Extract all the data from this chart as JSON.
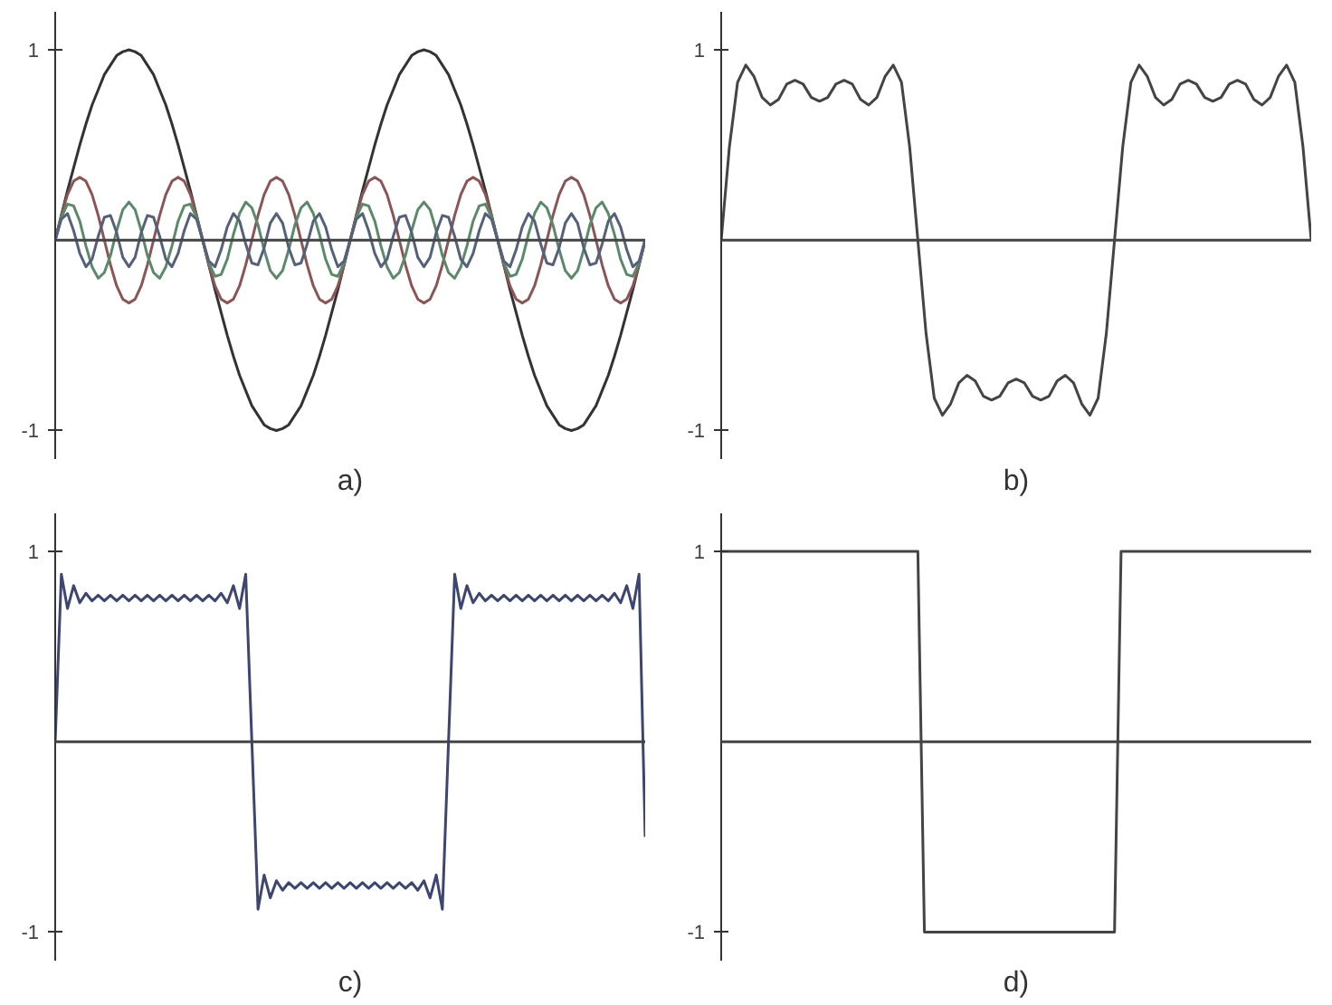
{
  "chart_data": [
    {
      "type": "line",
      "xlabel": "a)",
      "tick_labels": "y",
      "ylim": [
        -1.15,
        1.2
      ],
      "yticks": [
        1,
        -1
      ],
      "ref_lines": [
        {
          "axis": "y",
          "value": 0
        }
      ],
      "categories": [
        null,
        null,
        null,
        null,
        null,
        null,
        null,
        null,
        null,
        null,
        null,
        null,
        null,
        null,
        null,
        null,
        null,
        null,
        null,
        null,
        null,
        null,
        null,
        null,
        null,
        null,
        null,
        null,
        null,
        null,
        null,
        null,
        null,
        null,
        null,
        null,
        null,
        null,
        null,
        null,
        null,
        null,
        null,
        null,
        null,
        null,
        null,
        null,
        null,
        null,
        null,
        null,
        null,
        null,
        null,
        null,
        null,
        null,
        null,
        null,
        null,
        null,
        null,
        null,
        null,
        null,
        null,
        null,
        null,
        null,
        null,
        null,
        null,
        null,
        null,
        null,
        null,
        null,
        null,
        null,
        null,
        null,
        null,
        null,
        null,
        null,
        null,
        null,
        null,
        null,
        null,
        null,
        null,
        null,
        null,
        null,
        null
      ],
      "series": [
        {
          "color": "#333333",
          "values": [
            0,
            0.13,
            0.26,
            0.38,
            0.5,
            0.61,
            0.71,
            0.79,
            0.87,
            0.92,
            0.97,
            0.99,
            1,
            0.99,
            0.97,
            0.92,
            0.87,
            0.79,
            0.71,
            0.61,
            0.5,
            0.38,
            0.26,
            0.13,
            0,
            -0.13,
            -0.26,
            -0.38,
            -0.5,
            -0.61,
            -0.71,
            -0.79,
            -0.87,
            -0.92,
            -0.97,
            -0.99,
            -1,
            -0.99,
            -0.97,
            -0.92,
            -0.87,
            -0.79,
            -0.71,
            -0.61,
            -0.5,
            -0.38,
            -0.26,
            -0.13,
            0,
            0.13,
            0.26,
            0.38,
            0.5,
            0.61,
            0.71,
            0.79,
            0.87,
            0.92,
            0.97,
            0.99,
            1,
            0.99,
            0.97,
            0.92,
            0.87,
            0.79,
            0.71,
            0.61,
            0.5,
            0.38,
            0.26,
            0.13,
            0,
            -0.13,
            -0.26,
            -0.38,
            -0.5,
            -0.61,
            -0.71,
            -0.79,
            -0.87,
            -0.92,
            -0.97,
            -0.99,
            -1,
            -0.99,
            -0.97,
            -0.92,
            -0.87,
            -0.79,
            -0.71,
            -0.61,
            -0.5,
            -0.38,
            -0.26,
            -0.13,
            0
          ]
        },
        {
          "color": "#8c5555",
          "values": [
            0,
            0.13,
            0.24,
            0.31,
            0.33,
            0.31,
            0.24,
            0.13,
            0,
            -0.13,
            -0.24,
            -0.31,
            -0.33,
            -0.31,
            -0.24,
            -0.13,
            0,
            0.13,
            0.24,
            0.31,
            0.33,
            0.31,
            0.24,
            0.13,
            0,
            -0.13,
            -0.24,
            -0.31,
            -0.33,
            -0.31,
            -0.24,
            -0.13,
            0,
            0.13,
            0.24,
            0.31,
            0.33,
            0.31,
            0.24,
            0.13,
            0,
            -0.13,
            -0.24,
            -0.31,
            -0.33,
            -0.31,
            -0.24,
            -0.13,
            0,
            0.13,
            0.24,
            0.31,
            0.33,
            0.31,
            0.24,
            0.13,
            0,
            -0.13,
            -0.24,
            -0.31,
            -0.33,
            -0.31,
            -0.24,
            -0.13,
            0,
            0.13,
            0.24,
            0.31,
            0.33,
            0.31,
            0.24,
            0.13,
            0,
            -0.13,
            -0.24,
            -0.31,
            -0.33,
            -0.31,
            -0.24,
            -0.13,
            0,
            0.13,
            0.24,
            0.31,
            0.33,
            0.31,
            0.24,
            0.13,
            0,
            -0.13,
            -0.24,
            -0.31,
            -0.33,
            -0.31,
            -0.24,
            -0.13,
            0
          ]
        },
        {
          "color": "#5a8a6a",
          "values": [
            0,
            0.12,
            0.19,
            0.18,
            0.1,
            -0.03,
            -0.14,
            -0.2,
            -0.17,
            -0.08,
            0.05,
            0.16,
            0.2,
            0.16,
            0.05,
            -0.08,
            -0.17,
            -0.2,
            -0.14,
            -0.03,
            0.1,
            0.18,
            0.19,
            0.12,
            0,
            -0.12,
            -0.19,
            -0.18,
            -0.1,
            0.03,
            0.14,
            0.2,
            0.17,
            0.08,
            -0.05,
            -0.16,
            -0.2,
            -0.16,
            -0.05,
            0.08,
            0.17,
            0.2,
            0.14,
            0.03,
            -0.1,
            -0.18,
            -0.19,
            -0.12,
            0,
            0.12,
            0.19,
            0.18,
            0.1,
            -0.03,
            -0.14,
            -0.2,
            -0.17,
            -0.08,
            0.05,
            0.16,
            0.2,
            0.16,
            0.05,
            -0.08,
            -0.17,
            -0.2,
            -0.14,
            -0.03,
            0.1,
            0.18,
            0.19,
            0.12,
            0,
            -0.12,
            -0.19,
            -0.18,
            -0.1,
            0.03,
            0.14,
            0.2,
            0.17,
            0.08,
            -0.05,
            -0.16,
            -0.2,
            -0.16,
            -0.05,
            0.08,
            0.17,
            0.2,
            0.14,
            0.03,
            -0.1,
            -0.18,
            -0.19,
            -0.12,
            0
          ]
        },
        {
          "color": "#55607a",
          "values": [
            0,
            0.11,
            0.14,
            0.05,
            -0.07,
            -0.14,
            -0.1,
            0.02,
            0.12,
            0.13,
            0.04,
            -0.09,
            -0.14,
            -0.09,
            0.04,
            0.13,
            0.12,
            0.02,
            -0.1,
            -0.14,
            -0.07,
            0.05,
            0.14,
            0.11,
            0,
            -0.11,
            -0.14,
            -0.05,
            0.07,
            0.14,
            0.1,
            -0.02,
            -0.12,
            -0.13,
            -0.04,
            0.09,
            0.14,
            0.09,
            -0.04,
            -0.13,
            -0.12,
            -0.02,
            0.1,
            0.14,
            0.07,
            -0.05,
            -0.14,
            -0.11,
            0,
            0.11,
            0.14,
            0.05,
            -0.07,
            -0.14,
            -0.1,
            0.02,
            0.12,
            0.13,
            0.04,
            -0.09,
            -0.14,
            -0.09,
            0.04,
            0.13,
            0.12,
            0.02,
            -0.1,
            -0.14,
            -0.07,
            0.05,
            0.14,
            0.11,
            0,
            -0.11,
            -0.14,
            -0.05,
            0.07,
            0.14,
            0.1,
            -0.02,
            -0.12,
            -0.13,
            -0.04,
            0.09,
            0.14,
            0.09,
            -0.04,
            -0.13,
            -0.12,
            -0.02,
            0.1,
            0.14,
            0.07,
            -0.05,
            -0.14,
            -0.11,
            0
          ]
        }
      ]
    },
    {
      "type": "line",
      "xlabel": "b)",
      "tick_labels": "y",
      "ylim": [
        -1.15,
        1.2
      ],
      "yticks": [
        1,
        -1
      ],
      "ref_lines": [
        {
          "axis": "y",
          "value": 0
        }
      ],
      "categories": [
        null,
        null,
        null,
        null,
        null,
        null,
        null,
        null,
        null,
        null,
        null,
        null,
        null,
        null,
        null,
        null,
        null,
        null,
        null,
        null,
        null,
        null,
        null,
        null,
        null,
        null,
        null,
        null,
        null,
        null,
        null,
        null,
        null,
        null,
        null,
        null,
        null,
        null,
        null,
        null,
        null,
        null,
        null,
        null,
        null,
        null,
        null,
        null,
        null,
        null,
        null,
        null,
        null,
        null,
        null,
        null,
        null,
        null,
        null,
        null,
        null,
        null,
        null,
        null,
        null,
        null,
        null,
        null,
        null,
        null,
        null,
        null,
        null
      ],
      "series": [
        {
          "color": "#444444",
          "values": [
            0,
            0.49,
            0.83,
            0.92,
            0.86,
            0.75,
            0.71,
            0.74,
            0.82,
            0.84,
            0.82,
            0.75,
            0.73,
            0.75,
            0.82,
            0.84,
            0.82,
            0.74,
            0.71,
            0.75,
            0.86,
            0.92,
            0.83,
            0.49,
            0,
            -0.49,
            -0.83,
            -0.92,
            -0.86,
            -0.75,
            -0.71,
            -0.74,
            -0.82,
            -0.84,
            -0.82,
            -0.75,
            -0.73,
            -0.75,
            -0.82,
            -0.84,
            -0.82,
            -0.74,
            -0.71,
            -0.75,
            -0.86,
            -0.92,
            -0.83,
            -0.49,
            0,
            0.49,
            0.83,
            0.92,
            0.86,
            0.75,
            0.71,
            0.74,
            0.82,
            0.84,
            0.82,
            0.75,
            0.73,
            0.75,
            0.82,
            0.84,
            0.82,
            0.74,
            0.71,
            0.75,
            0.86,
            0.92,
            0.83,
            0.49,
            0
          ]
        }
      ]
    },
    {
      "type": "line",
      "xlabel": "c)",
      "tick_labels": "y",
      "ylim": [
        -1.15,
        1.2
      ],
      "yticks": [
        1,
        -1
      ],
      "ref_lines": [
        {
          "axis": "y",
          "value": 0
        }
      ],
      "categories": [
        null,
        null,
        null,
        null,
        null,
        null,
        null,
        null,
        null,
        null,
        null,
        null,
        null,
        null,
        null,
        null,
        null,
        null,
        null,
        null,
        null,
        null,
        null,
        null,
        null,
        null,
        null,
        null,
        null,
        null,
        null,
        null,
        null,
        null,
        null,
        null,
        null,
        null,
        null,
        null,
        null,
        null,
        null,
        null,
        null,
        null,
        null,
        null,
        null,
        null,
        null,
        null,
        null,
        null,
        null,
        null,
        null,
        null,
        null,
        null,
        null,
        null,
        null,
        null,
        null,
        null,
        null,
        null,
        null,
        null,
        null,
        null,
        null,
        null,
        null,
        null,
        null,
        null,
        null,
        null,
        null,
        null,
        null,
        null,
        null,
        null,
        null,
        null,
        null,
        null,
        null,
        null,
        null,
        null,
        null,
        null,
        null
      ],
      "series": [
        {
          "color": "#3c4670",
          "values": [
            0,
            0.88,
            0.7,
            0.82,
            0.73,
            0.78,
            0.74,
            0.77,
            0.74,
            0.77,
            0.74,
            0.77,
            0.74,
            0.77,
            0.74,
            0.77,
            0.74,
            0.77,
            0.74,
            0.77,
            0.74,
            0.77,
            0.74,
            0.77,
            0.74,
            0.77,
            0.74,
            0.78,
            0.73,
            0.82,
            0.7,
            0.88,
            0,
            -0.88,
            -0.7,
            -0.82,
            -0.73,
            -0.78,
            -0.74,
            -0.77,
            -0.74,
            -0.77,
            -0.74,
            -0.77,
            -0.74,
            -0.77,
            -0.74,
            -0.77,
            -0.74,
            -0.77,
            -0.74,
            -0.77,
            -0.74,
            -0.77,
            -0.74,
            -0.77,
            -0.74,
            -0.77,
            -0.74,
            -0.78,
            -0.73,
            -0.82,
            -0.7,
            -0.88,
            0,
            0.88,
            0.7,
            0.82,
            0.73,
            0.78,
            0.74,
            0.77,
            0.74,
            0.77,
            0.74,
            0.77,
            0.74,
            0.77,
            0.74,
            0.77,
            0.74,
            0.77,
            0.74,
            0.77,
            0.74,
            0.77,
            0.74,
            0.77,
            0.74,
            0.77,
            0.74,
            0.78,
            0.73,
            0.82,
            0.7,
            0.88,
            -0.5
          ]
        }
      ]
    },
    {
      "type": "line",
      "xlabel": "d)",
      "tick_labels": "y",
      "ylim": [
        -1.15,
        1.2
      ],
      "yticks": [
        1,
        -1
      ],
      "ref_lines": [
        {
          "axis": "y",
          "value": 0
        }
      ],
      "categories": [
        null,
        null,
        null,
        null,
        null,
        null,
        null,
        null,
        null,
        null,
        null,
        null,
        null,
        null,
        null,
        null,
        null,
        null,
        null,
        null,
        null,
        null,
        null,
        null,
        null,
        null,
        null,
        null,
        null,
        null,
        null,
        null,
        null,
        null,
        null,
        null,
        null,
        null,
        null,
        null,
        null,
        null,
        null,
        null,
        null,
        null,
        null,
        null,
        null,
        null,
        null,
        null,
        null,
        null,
        null,
        null,
        null,
        null,
        null,
        null,
        null,
        null,
        null,
        null,
        null,
        null,
        null,
        null,
        null,
        null,
        null,
        null,
        null,
        null,
        null,
        null,
        null,
        null,
        null,
        null,
        null,
        null,
        null,
        null,
        null,
        null,
        null,
        null,
        null,
        null,
        null
      ],
      "series": [
        {
          "color": "#444444",
          "values": [
            1,
            1,
            1,
            1,
            1,
            1,
            1,
            1,
            1,
            1,
            1,
            1,
            1,
            1,
            1,
            1,
            1,
            1,
            1,
            1,
            1,
            1,
            1,
            1,
            1,
            1,
            1,
            1,
            1,
            1,
            1,
            -1,
            -1,
            -1,
            -1,
            -1,
            -1,
            -1,
            -1,
            -1,
            -1,
            -1,
            -1,
            -1,
            -1,
            -1,
            -1,
            -1,
            -1,
            -1,
            -1,
            -1,
            -1,
            -1,
            -1,
            -1,
            -1,
            -1,
            -1,
            -1,
            -1,
            1,
            1,
            1,
            1,
            1,
            1,
            1,
            1,
            1,
            1,
            1,
            1,
            1,
            1,
            1,
            1,
            1,
            1,
            1,
            1,
            1,
            1,
            1,
            1,
            1,
            1,
            1,
            1,
            1,
            1
          ]
        }
      ]
    }
  ]
}
